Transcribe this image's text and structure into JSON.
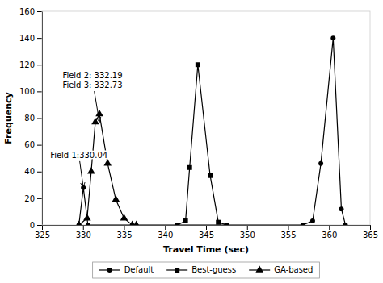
{
  "chart_data": {
    "type": "line",
    "xlabel": "Travel Time (sec)",
    "ylabel": "Frequency",
    "xlim": [
      325,
      365
    ],
    "ylim": [
      0,
      160
    ],
    "xticks": [
      325,
      330,
      335,
      340,
      345,
      350,
      355,
      360,
      365
    ],
    "yticks": [
      0,
      20,
      40,
      60,
      80,
      100,
      120,
      140,
      160
    ],
    "grid": false,
    "legend": "bottom",
    "series": [
      {
        "name": "Default",
        "color": "black",
        "marker": "circle",
        "x": [
          329.5,
          330.04,
          330.6,
          356.8,
          358.0,
          359.0,
          360.5,
          361.5,
          362.0
        ],
        "values": [
          0,
          28,
          0,
          0,
          3,
          46,
          140,
          12,
          0
        ]
      },
      {
        "name": "Best-guess",
        "color": "black",
        "marker": "square",
        "x": [
          341.5,
          342.5,
          343.0,
          344.0,
          345.5,
          346.5,
          347.5
        ],
        "values": [
          0,
          3,
          43,
          120,
          37,
          2,
          0
        ]
      },
      {
        "name": "GA-based",
        "color": "black",
        "marker": "triangle",
        "x": [
          329.5,
          330.5,
          331.0,
          331.5,
          332.0,
          333.0,
          334.0,
          335.0,
          336.0,
          336.5
        ],
        "values": [
          0,
          5,
          40,
          77,
          83,
          46,
          19,
          5,
          0,
          0
        ]
      }
    ],
    "annotations": [
      {
        "text": "Field 2: 332.19\nField 3: 332.73",
        "x": 332.0,
        "y": 77,
        "text_x": 327.5,
        "text_y": 108
      },
      {
        "text": "Field 1:330.04",
        "x": 330.04,
        "y": 28,
        "text_x": 326.0,
        "text_y": 52
      }
    ]
  }
}
